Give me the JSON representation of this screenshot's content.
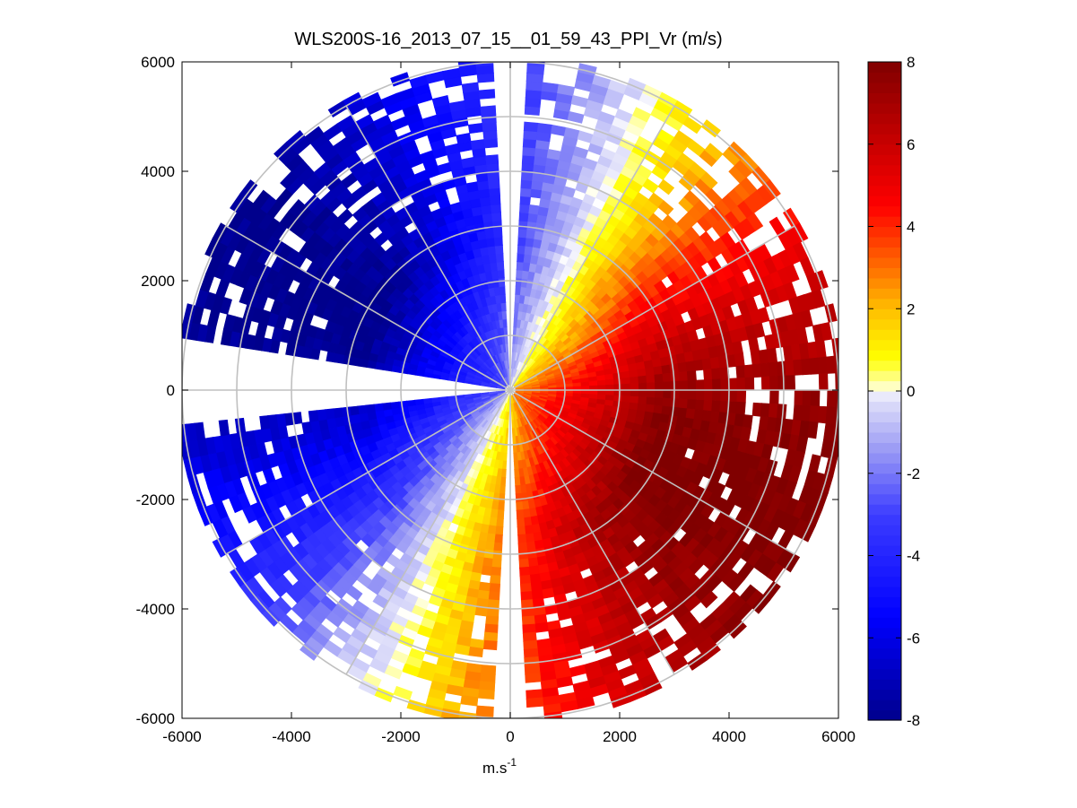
{
  "chart_data": {
    "type": "heatmap",
    "subtype": "polar-ppi",
    "title": "WLS200S-16_2013_07_15__01_59_43_PPI_Vr (m/s)",
    "xlabel": "m.s",
    "xlabel_superscript": "-1",
    "ylabel": "",
    "xlim": [
      -6000,
      6000
    ],
    "ylim": [
      -6000,
      6000
    ],
    "xticks": [
      -6000,
      -4000,
      -2000,
      0,
      2000,
      4000,
      6000
    ],
    "yticks": [
      -6000,
      -4000,
      -2000,
      0,
      2000,
      4000,
      6000
    ],
    "xtick_labels": [
      "-6000",
      "-4000",
      "-2000",
      "0",
      "2000",
      "4000",
      "6000"
    ],
    "ytick_labels": [
      "-6000",
      "-4000",
      "-2000",
      "0",
      "2000",
      "4000",
      "6000"
    ],
    "range_rings": [
      1000,
      2000,
      3000,
      4000,
      5000,
      6000
    ],
    "spokes_deg": [
      0,
      30,
      60,
      90,
      120,
      150,
      180,
      210,
      240,
      270,
      300,
      330
    ],
    "max_range": 6000,
    "no_data_sectors": [
      {
        "from_az_deg": 263,
        "to_az_deg": 279
      },
      {
        "from_az_deg": 178,
        "to_az_deg": 182
      },
      {
        "from_az_deg": 358,
        "to_az_deg": 3
      }
    ],
    "field": {
      "variable": "Vr",
      "units": "m/s",
      "description": "Radial velocity: blue (negative) toward west/north-west, red (positive) toward south-east",
      "zero_line_azimuth_deg": 25,
      "max_abs_velocity": 8,
      "peak_positive_azimuth_deg": 115,
      "peak_negative_azimuth_deg": 295
    },
    "colorbar": {
      "min": -8,
      "max": 8,
      "ticks": [
        -8,
        -6,
        -4,
        -2,
        0,
        2,
        4,
        6,
        8
      ],
      "tick_labels": [
        "-8",
        "-6",
        "-4",
        "-2",
        "0",
        "2",
        "4",
        "6",
        "8"
      ]
    },
    "colors": {
      "grid": "#c0c0c0",
      "negative_deep": "#00008c",
      "negative_mid": "#0000ff",
      "zero": "#ffffff",
      "positive_low": "#ffff00",
      "positive_mid": "#ff0000",
      "positive_deep": "#800000"
    }
  }
}
